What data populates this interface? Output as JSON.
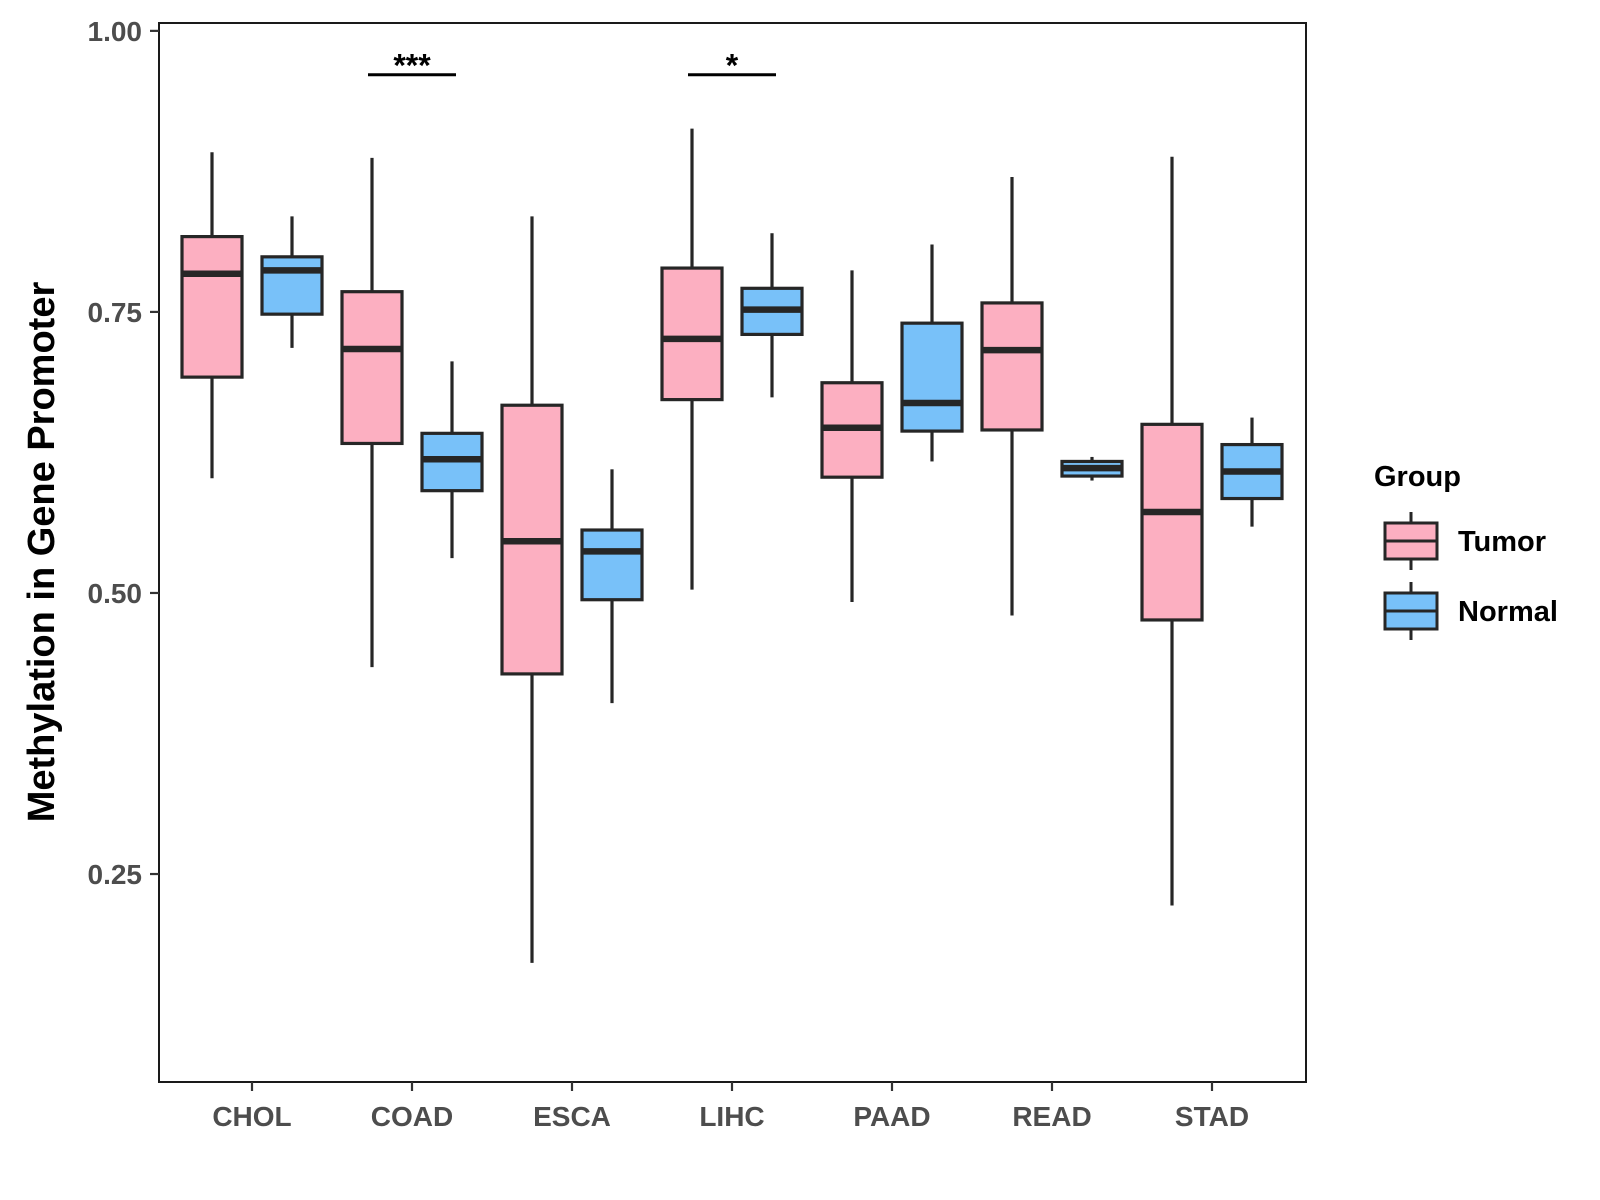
{
  "chart_data": {
    "type": "boxplot",
    "title": "",
    "xlabel": "",
    "ylabel": "Methylation in Gene Promoter",
    "ylim": [
      0.065,
      1.007
    ],
    "y_ticks": [
      0.25,
      0.5,
      0.75,
      1.0
    ],
    "y_tick_labels": [
      "0.25",
      "0.50",
      "0.75",
      "1.00"
    ],
    "categories": [
      "CHOL",
      "COAD",
      "ESCA",
      "LIHC",
      "PAAD",
      "READ",
      "STAD"
    ],
    "grid": false,
    "legend": {
      "title": "Group",
      "position": "right",
      "entries": [
        {
          "name": "Tumor",
          "color": "#fcafc1"
        },
        {
          "name": "Normal",
          "color": "#78c1f9"
        }
      ]
    },
    "series": [
      {
        "name": "Tumor",
        "color": "#fcafc1",
        "boxes": [
          {
            "category": "CHOL",
            "whisker_low": 0.602,
            "q1": 0.692,
            "median": 0.784,
            "q3": 0.817,
            "whisker_high": 0.892
          },
          {
            "category": "COAD",
            "whisker_low": 0.434,
            "q1": 0.633,
            "median": 0.717,
            "q3": 0.768,
            "whisker_high": 0.887
          },
          {
            "category": "ESCA",
            "whisker_low": 0.171,
            "q1": 0.428,
            "median": 0.546,
            "q3": 0.667,
            "whisker_high": 0.835
          },
          {
            "category": "LIHC",
            "whisker_low": 0.503,
            "q1": 0.672,
            "median": 0.726,
            "q3": 0.789,
            "whisker_high": 0.913
          },
          {
            "category": "PAAD",
            "whisker_low": 0.492,
            "q1": 0.603,
            "median": 0.647,
            "q3": 0.687,
            "whisker_high": 0.787
          },
          {
            "category": "READ",
            "whisker_low": 0.48,
            "q1": 0.645,
            "median": 0.716,
            "q3": 0.758,
            "whisker_high": 0.87
          },
          {
            "category": "STAD",
            "whisker_low": 0.222,
            "q1": 0.476,
            "median": 0.572,
            "q3": 0.65,
            "whisker_high": 0.888
          }
        ]
      },
      {
        "name": "Normal",
        "color": "#78c1f9",
        "boxes": [
          {
            "category": "CHOL",
            "whisker_low": 0.718,
            "q1": 0.748,
            "median": 0.787,
            "q3": 0.799,
            "whisker_high": 0.835
          },
          {
            "category": "COAD",
            "whisker_low": 0.531,
            "q1": 0.591,
            "median": 0.619,
            "q3": 0.642,
            "whisker_high": 0.706
          },
          {
            "category": "ESCA",
            "whisker_low": 0.402,
            "q1": 0.494,
            "median": 0.537,
            "q3": 0.556,
            "whisker_high": 0.61
          },
          {
            "category": "LIHC",
            "whisker_low": 0.674,
            "q1": 0.73,
            "median": 0.752,
            "q3": 0.771,
            "whisker_high": 0.82
          },
          {
            "category": "PAAD",
            "whisker_low": 0.617,
            "q1": 0.644,
            "median": 0.669,
            "q3": 0.74,
            "whisker_high": 0.81
          },
          {
            "category": "READ",
            "whisker_low": 0.6,
            "q1": 0.604,
            "median": 0.611,
            "q3": 0.617,
            "whisker_high": 0.621
          },
          {
            "category": "STAD",
            "whisker_low": 0.559,
            "q1": 0.584,
            "median": 0.608,
            "q3": 0.632,
            "whisker_high": 0.656
          }
        ]
      }
    ],
    "annotations": [
      {
        "category": "COAD",
        "label": "***",
        "y": 0.961
      },
      {
        "category": "LIHC",
        "label": "*",
        "y": 0.961
      }
    ]
  }
}
